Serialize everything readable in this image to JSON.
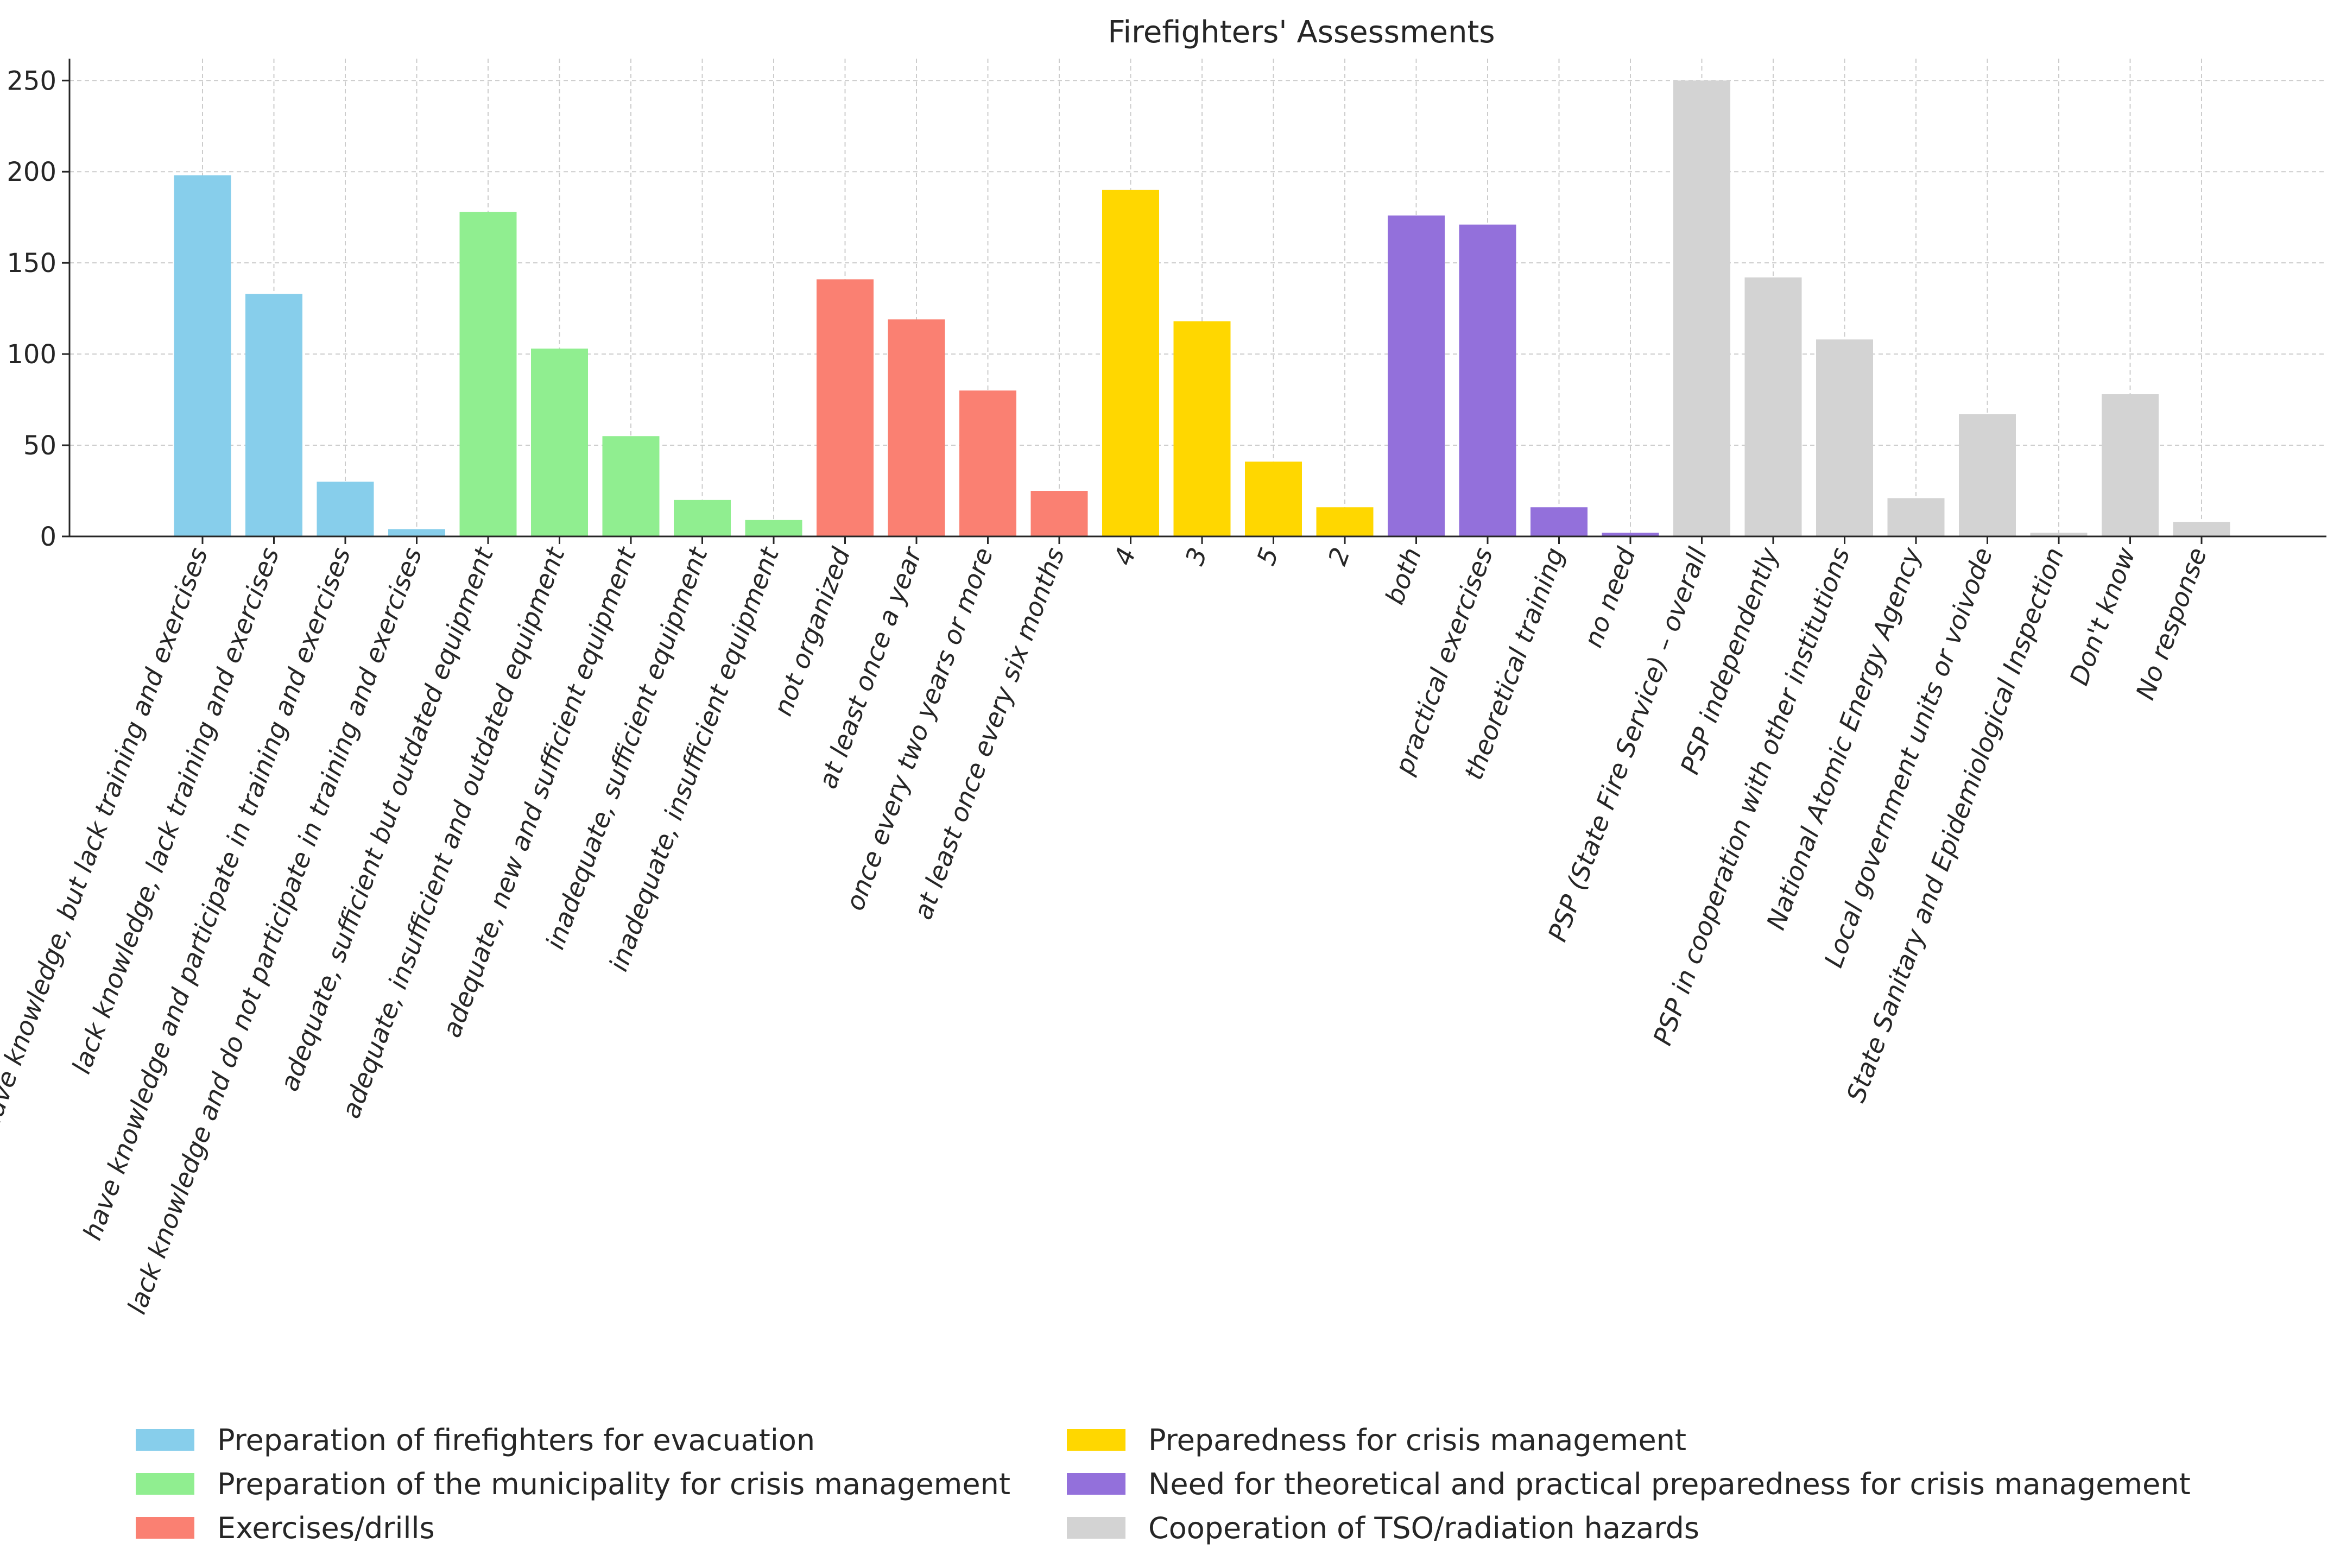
{
  "chart_data": {
    "type": "bar",
    "title": "Firefighters' Assessments",
    "xlabel": "",
    "ylabel": "",
    "ylim": [
      0,
      262
    ],
    "yticks": [
      0,
      50,
      100,
      150,
      200,
      250
    ],
    "grid": true,
    "legend_position": "bottom",
    "series": [
      {
        "name": "Preparation of firefighters for evacuation",
        "color": "#87CEEB",
        "categories": [
          "have knowledge, but lack training and exercises",
          "lack knowledge, lack training and exercises",
          "have knowledge and participate in training and exercises",
          "lack knowledge and do not participate in training and exercises"
        ],
        "values": [
          198,
          133,
          30,
          4
        ]
      },
      {
        "name": "Preparation of the municipality for crisis management",
        "color": "#90EE90",
        "categories": [
          "adequate, sufficient but outdated equipment",
          "adequate, insufficient and outdated equipment",
          "adequate, new and sufficient equipment",
          "inadequate, sufficient equipment",
          "inadequate, insufficient equipment"
        ],
        "values": [
          178,
          103,
          55,
          20,
          9
        ]
      },
      {
        "name": "Exercises/drills",
        "color": "#FA8072",
        "categories": [
          "not organized",
          "at least once a year",
          "once every two years or more",
          "at least once every six months"
        ],
        "values": [
          141,
          119,
          80,
          25
        ]
      },
      {
        "name": "Preparedness for crisis management",
        "color": "#FFD700",
        "categories": [
          "4",
          "3",
          "5",
          "2"
        ],
        "values": [
          190,
          118,
          41,
          16
        ]
      },
      {
        "name": "Need for theoretical and practical preparedness for crisis management",
        "color": "#9370DB",
        "categories": [
          "both",
          "practical exercises",
          "theoretical training",
          "no need"
        ],
        "values": [
          176,
          171,
          16,
          2
        ]
      },
      {
        "name": "Cooperation of TSO/radiation hazards",
        "color": "#D3D3D3",
        "categories": [
          "PSP (State Fire Service) – overall",
          "PSP independently",
          "PSP in cooperation with other institutions",
          "National Atomic Energy Agency",
          "Local government units or voivode",
          "State Sanitary and Epidemiological Inspection",
          "Don't know",
          "No response"
        ],
        "values": [
          250,
          142,
          108,
          21,
          67,
          2,
          78,
          8
        ]
      }
    ]
  }
}
